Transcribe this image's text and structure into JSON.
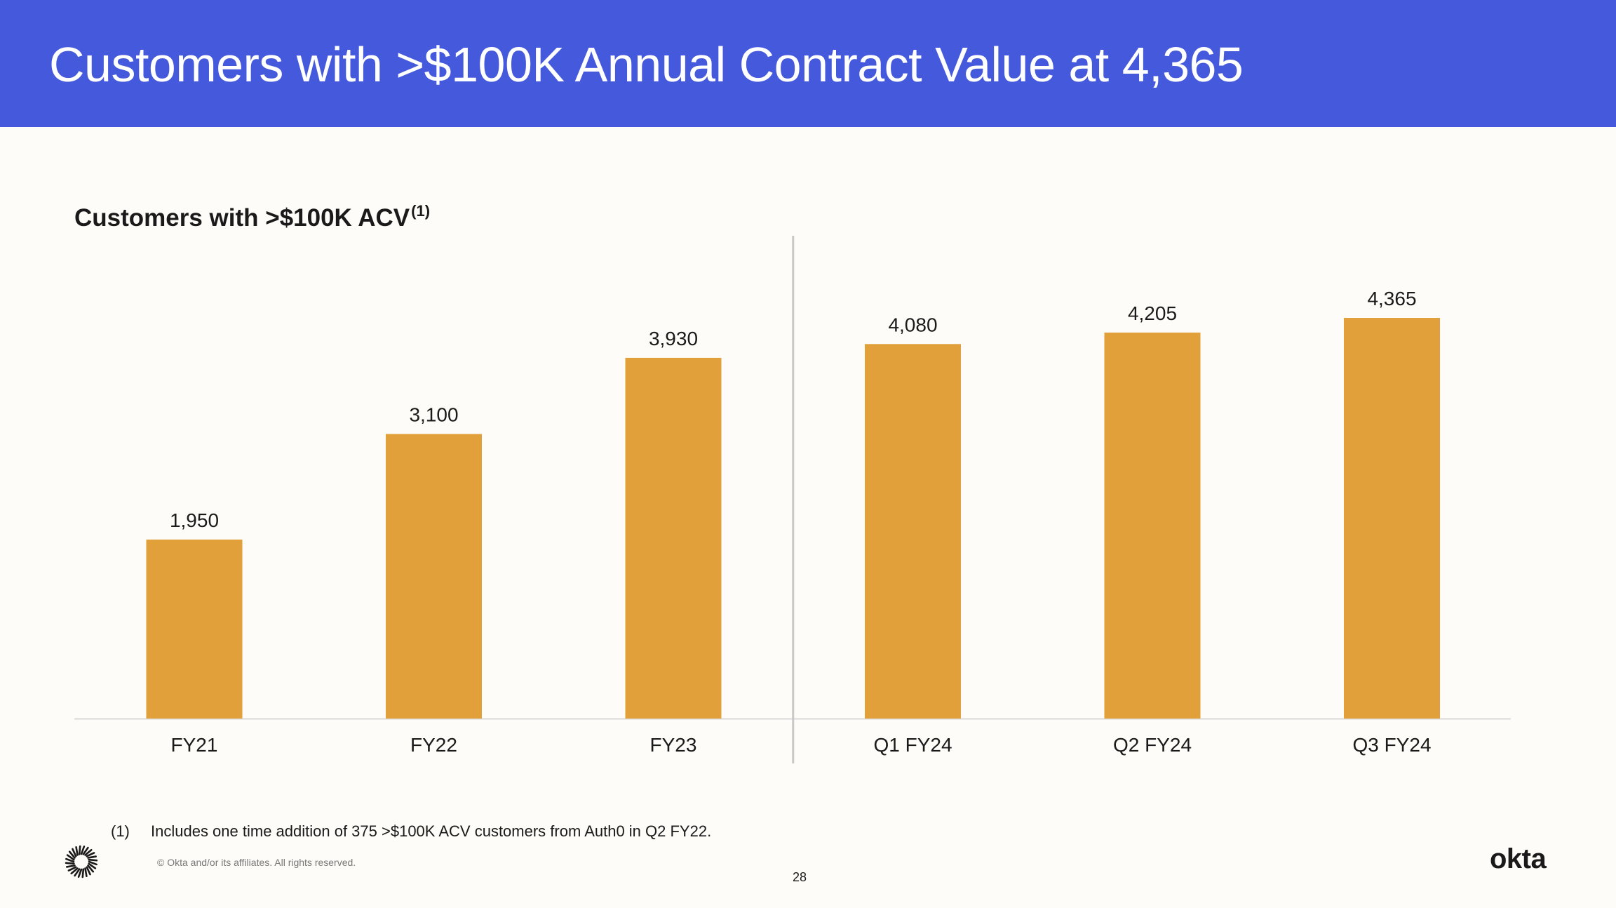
{
  "header": {
    "title": "Customers with >$100K Annual Contract Value at 4,365"
  },
  "chart_title": {
    "text": "Customers with >$100K ACV",
    "superscript": "(1)"
  },
  "chart_data": {
    "type": "bar",
    "title": "Customers with >$100K ACV(1)",
    "categories": [
      "FY21",
      "FY22",
      "FY23",
      "Q1 FY24",
      "Q2 FY24",
      "Q3 FY24"
    ],
    "values": [
      1950,
      3100,
      3930,
      4080,
      4205,
      4365
    ],
    "value_labels": [
      "1,950",
      "3,100",
      "3,930",
      "4,080",
      "4,205",
      "4,365"
    ],
    "xlabel": "",
    "ylabel": "",
    "ylim": [
      0,
      4365
    ],
    "grid": false,
    "divider_after_category": "FY23",
    "colors": {
      "bar": "#e2a03b",
      "divider": "#c8c8c8",
      "baseline": "#d9d9d9"
    }
  },
  "footnote": {
    "marker": "(1)",
    "text": "Includes one time addition of 375 >$100K ACV customers from Auth0 in Q2 FY22."
  },
  "copyright": "© Okta and/or its affiliates. All rights reserved.",
  "page_number": "28",
  "brand": {
    "logo_text": "okta",
    "burst_icon": "okta-burst-icon",
    "header_color": "#4559dc"
  }
}
